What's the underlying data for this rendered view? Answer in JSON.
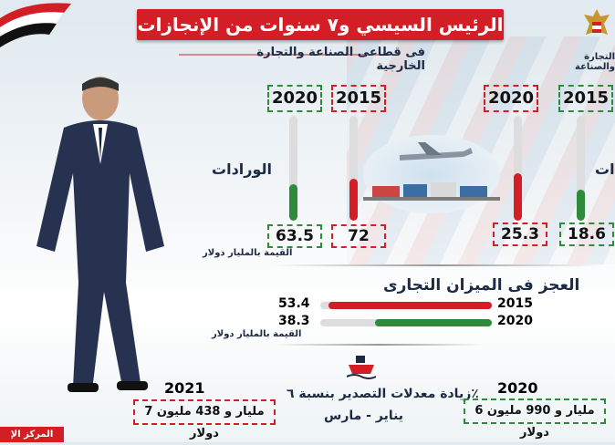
{
  "header": {
    "title": "الرئيس السيسي و٧ سنوات من الإنجازات",
    "subtitle": "فى قطاعى الصناعة والتجارة الخارجية",
    "ministry": "التجارة والصناعة"
  },
  "imports": {
    "label": "الورادات",
    "years": [
      "2020",
      "2015"
    ],
    "values": [
      "63.5",
      "72"
    ],
    "fractions": [
      0.35,
      0.4
    ]
  },
  "exports": {
    "label": "ات",
    "years": [
      "2020",
      "2015"
    ],
    "values": [
      "25.3",
      "18.6"
    ],
    "fractions": [
      0.45,
      0.3
    ]
  },
  "unit_label_1": "القيمة بالمليار دولار",
  "deficit": {
    "title": "العجز فى الميزان التجارى",
    "rows": [
      {
        "year": "2015",
        "value": "53.4",
        "color": "#d31e25",
        "fraction": 0.95
      },
      {
        "year": "2020",
        "value": "38.3",
        "color": "#2e8b3a",
        "fraction": 0.68
      }
    ]
  },
  "unit_label_2": "القيمة بالمليار دولار",
  "export_rate": {
    "text": "زيادة معدلات التصدير بنسبة ٦٪",
    "period": "يناير - مارس",
    "left_year": "2021",
    "left_value": "7 مليار و 438 مليون دولار",
    "right_year": "2020",
    "right_value": "6 مليار و 990 مليون دولار"
  },
  "footer": {
    "tag": "المركز الإ"
  },
  "colors": {
    "red": "#d31e25",
    "green": "#2e8b3a",
    "navy": "#1c2a44"
  }
}
